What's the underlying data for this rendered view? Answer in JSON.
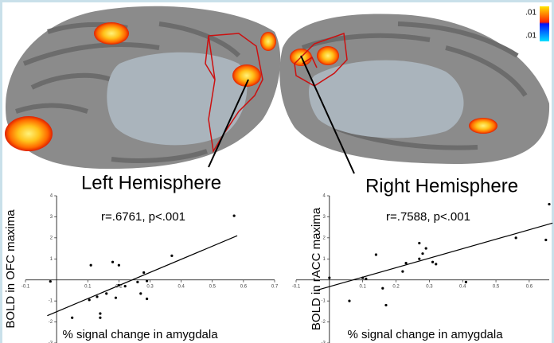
{
  "figure": {
    "left_label": "Left Hemisphere",
    "right_label": "Right Hemisphere",
    "colorbar_labels": [
      ".01",
      ".01"
    ]
  },
  "chart_data": [
    {
      "type": "scatter",
      "annotation": "r=.6761, p<.001",
      "y_label": "BOLD in OFC maxima",
      "x_label": "% signal change in amygdala",
      "x": [
        -0.02,
        0.05,
        0.11,
        0.105,
        0.13,
        0.14,
        0.14,
        0.16,
        0.18,
        0.2,
        0.2,
        0.22,
        0.19,
        0.26,
        0.28,
        0.29,
        0.27,
        0.29,
        0.37,
        0.57
      ],
      "values": [
        -0.07,
        -1.8,
        0.7,
        -0.95,
        -0.8,
        -1.6,
        -1.8,
        -0.65,
        0.85,
        0.7,
        -0.25,
        -0.3,
        -0.85,
        -0.1,
        0.35,
        -0.05,
        -0.65,
        -0.9,
        1.15,
        3.05
      ],
      "color": "#000000",
      "fit_line": {
        "x": [
          -0.03,
          0.58
        ],
        "y": [
          -1.7,
          2.1
        ]
      },
      "xlim": [
        -0.1,
        0.7
      ],
      "ylim": [
        -3,
        4
      ],
      "xticks": [
        -0.1,
        0.1,
        0.2,
        0.3,
        0.4,
        0.5,
        0.6,
        0.7
      ],
      "yticks": [
        -3,
        -2,
        -1,
        1,
        2,
        3,
        4
      ]
    },
    {
      "type": "scatter",
      "annotation": "r=.7588, p<.001",
      "y_label": "BOLD in rACC maxima",
      "x_label": "% signal change in amygdala",
      "x": [
        0.0,
        0.06,
        0.1,
        0.11,
        0.14,
        0.16,
        0.17,
        0.22,
        0.23,
        0.27,
        0.27,
        0.28,
        0.29,
        0.31,
        0.32,
        0.41,
        0.56,
        0.65,
        0.66
      ],
      "values": [
        0.1,
        -1.0,
        0.1,
        0.05,
        1.2,
        -0.4,
        -1.2,
        0.4,
        0.8,
        1.0,
        1.75,
        1.25,
        1.5,
        0.85,
        0.75,
        -0.1,
        2.0,
        1.9,
        3.6
      ],
      "color": "#000000",
      "fit_line": {
        "x": [
          -0.04,
          0.67
        ],
        "y": [
          -0.5,
          2.7
        ]
      },
      "xlim": [
        -0.1,
        0.66
      ],
      "ylim": [
        -3,
        4
      ],
      "xticks": [
        -0.1,
        0.1,
        0.2,
        0.3,
        0.4,
        0.5,
        0.6
      ],
      "yticks": [
        -3,
        -2,
        -1,
        1,
        2,
        3,
        4
      ]
    }
  ]
}
